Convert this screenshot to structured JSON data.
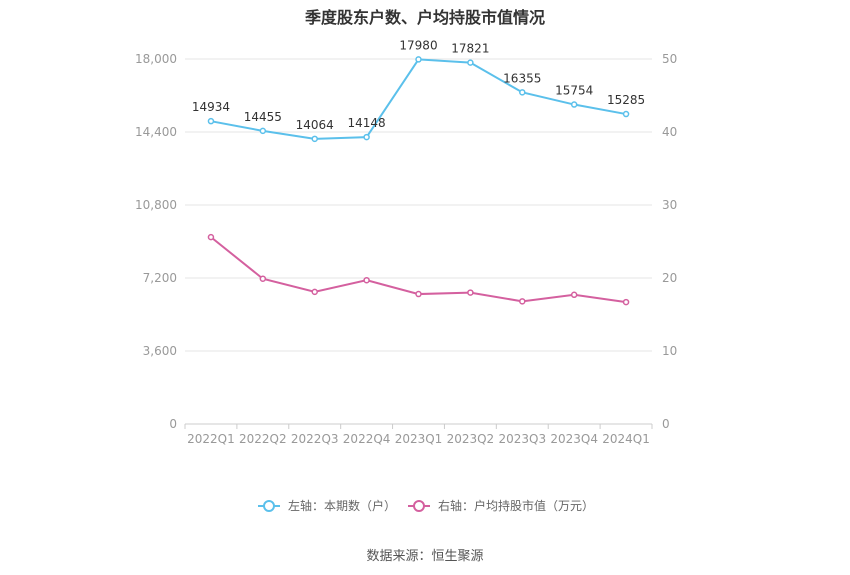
{
  "title": "季度股东户数、户均持股市值情况",
  "source": "数据来源：恒生聚源",
  "chart_data": {
    "type": "line",
    "title": "季度股东户数、户均持股市值情况",
    "categories": [
      "2022Q1",
      "2022Q2",
      "2022Q3",
      "2022Q4",
      "2023Q1",
      "2023Q2",
      "2023Q3",
      "2023Q4",
      "2024Q1"
    ],
    "series": [
      {
        "name": "左轴：本期数（户）",
        "axis": "left",
        "color": "#5bc0eb",
        "values": [
          14934,
          14455,
          14064,
          14148,
          17980,
          17821,
          16355,
          15754,
          15285
        ],
        "labels": [
          "14934",
          "14455",
          "14064",
          "14148",
          "17980",
          "17821",
          "16355",
          "15754",
          "15285"
        ]
      },
      {
        "name": "右轴：户均持股市值（万元）",
        "axis": "right",
        "color": "#d4609f",
        "values": [
          25.6,
          19.9,
          18.1,
          19.7,
          17.8,
          18.0,
          16.8,
          17.7,
          16.7
        ]
      }
    ],
    "y_left": {
      "range": [
        0,
        18000
      ],
      "ticks": [
        "0",
        "3,600",
        "7,200",
        "10,800",
        "14,400",
        "18,000"
      ],
      "tick_values": [
        0,
        3600,
        7200,
        10800,
        14400,
        18000
      ]
    },
    "y_right": {
      "range": [
        0,
        50
      ],
      "ticks": [
        "0",
        "10",
        "20",
        "30",
        "40",
        "50"
      ],
      "tick_values": [
        0,
        10,
        20,
        30,
        40,
        50
      ]
    },
    "grid": true,
    "legend_position": "bottom"
  }
}
